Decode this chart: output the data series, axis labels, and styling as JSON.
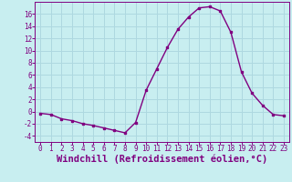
{
  "x": [
    0,
    1,
    2,
    3,
    4,
    5,
    6,
    7,
    8,
    9,
    10,
    11,
    12,
    13,
    14,
    15,
    16,
    17,
    18,
    19,
    20,
    21,
    22,
    23
  ],
  "y": [
    -0.3,
    -0.5,
    -1.2,
    -1.5,
    -2.0,
    -2.3,
    -2.7,
    -3.1,
    -3.5,
    -1.8,
    3.5,
    7.0,
    10.5,
    13.5,
    15.5,
    17.0,
    17.2,
    16.5,
    13.0,
    6.5,
    3.0,
    1.0,
    -0.5,
    -0.7
  ],
  "line_color": "#800080",
  "marker_color": "#800080",
  "bg_color": "#c8eef0",
  "grid_color": "#aed8e0",
  "xlabel": "Windchill (Refroidissement éolien,°C)",
  "ylabel": "",
  "xlim": [
    -0.5,
    23.5
  ],
  "ylim": [
    -5,
    18
  ],
  "yticks": [
    -4,
    -2,
    0,
    2,
    4,
    6,
    8,
    10,
    12,
    14,
    16
  ],
  "xticks": [
    0,
    1,
    2,
    3,
    4,
    5,
    6,
    7,
    8,
    9,
    10,
    11,
    12,
    13,
    14,
    15,
    16,
    17,
    18,
    19,
    20,
    21,
    22,
    23
  ],
  "font_color": "#800080",
  "tick_font_size": 5.5,
  "label_font_size": 7.5
}
